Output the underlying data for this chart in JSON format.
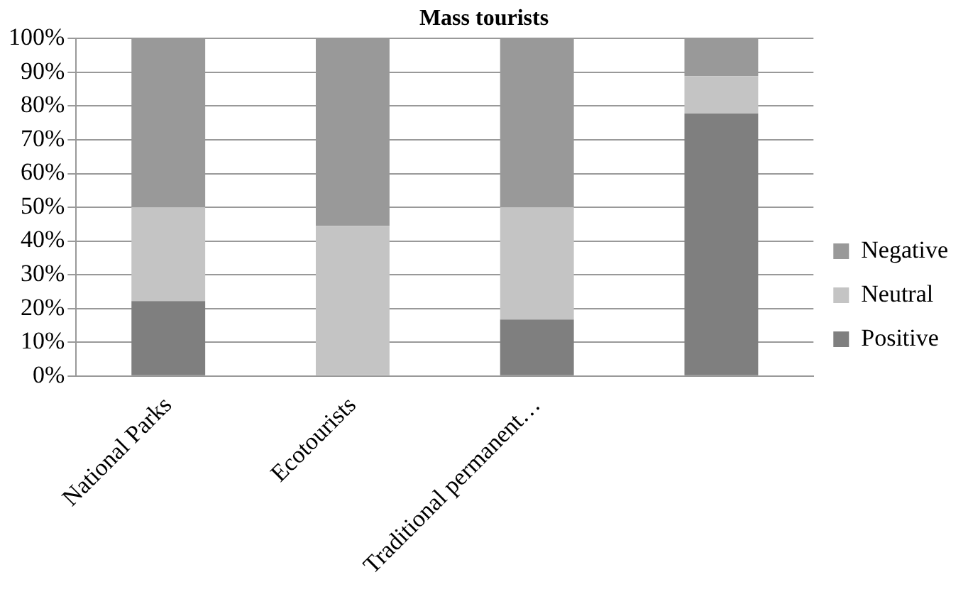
{
  "chart_data": {
    "type": "bar",
    "title": "Mass tourists",
    "categories": [
      "National Parks",
      "Ecotourists",
      "Traditional permanent…",
      null
    ],
    "stacked": true,
    "series": [
      {
        "name": "Positive",
        "color": "#7f7f7f",
        "values": [
          22.2,
          0,
          16.7,
          77.8
        ]
      },
      {
        "name": "Neutral",
        "color": "#c4c4c4",
        "values": [
          27.8,
          44.5,
          33.3,
          11.1
        ]
      },
      {
        "name": "Negative",
        "color": "#999999",
        "values": [
          50,
          55.5,
          50,
          11.1
        ]
      }
    ],
    "ylim": [
      0,
      100
    ],
    "yticks": [
      {
        "value": 0,
        "label": "0%"
      },
      {
        "value": 10,
        "label": "10%"
      },
      {
        "value": 20,
        "label": "20%"
      },
      {
        "value": 30,
        "label": "30%"
      },
      {
        "value": 40,
        "label": "40%"
      },
      {
        "value": 50,
        "label": "50%"
      },
      {
        "value": 60,
        "label": "60%"
      },
      {
        "value": 70,
        "label": "70%"
      },
      {
        "value": 80,
        "label": "80%"
      },
      {
        "value": 90,
        "label": "90%"
      },
      {
        "value": 100,
        "label": "100%"
      }
    ],
    "grid": "y",
    "legend": "right"
  }
}
